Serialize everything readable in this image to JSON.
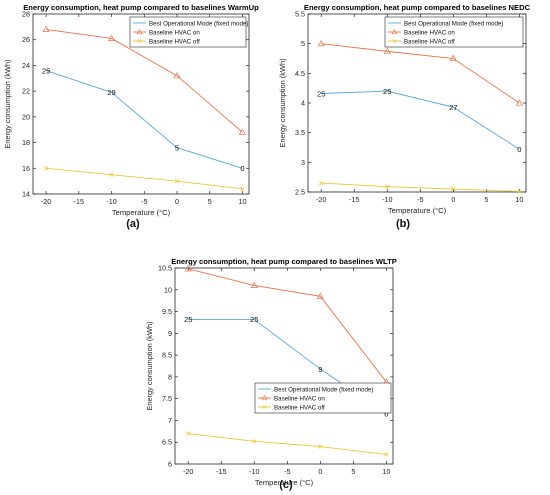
{
  "colors": {
    "best": "#5aa7d8",
    "hvac_on": "#e8744a",
    "hvac_off": "#edc535",
    "axis": "#262626",
    "title": "#000000"
  },
  "legend_labels": [
    "Best Operational Mode (fixed mode)",
    "Baseline HVAC on",
    "Baseline HVAC off"
  ],
  "chart_data": [
    {
      "type": "line",
      "title": "Energy consumption, heat pump compared to baselines WarmUp",
      "caption": "(a)",
      "xlabel": "Temperature (°C)",
      "ylabel": "Energy consumption (kWh)",
      "x": [
        -20,
        -10,
        0,
        10
      ],
      "xlim": [
        -22,
        11
      ],
      "ylim": [
        14,
        28
      ],
      "xticks": [
        -20,
        -15,
        -10,
        -5,
        0,
        5,
        10
      ],
      "yticks": [
        14,
        16,
        18,
        20,
        22,
        24,
        26,
        28
      ],
      "ytick_labels": [
        "14",
        "16",
        "18",
        "20",
        "22",
        "24",
        "26",
        "28"
      ],
      "legend_position": "top-right",
      "series": [
        {
          "name": "Best Operational Mode (fixed mode)",
          "values": [
            23.6,
            21.9,
            17.6,
            16.0
          ],
          "point_labels": [
            "25",
            "29",
            "5",
            "0"
          ]
        },
        {
          "name": "Baseline HVAC on",
          "values": [
            26.8,
            26.1,
            23.2,
            18.8
          ]
        },
        {
          "name": "Baseline HVAC off",
          "values": [
            16.0,
            15.5,
            15.0,
            14.4
          ]
        }
      ]
    },
    {
      "type": "line",
      "title": "Energy consumption, heat pump compared to baselines NEDC",
      "caption": "(b)",
      "xlabel": "Temperature (°C)",
      "ylabel": "Energy consumption (kWh)",
      "x": [
        -20,
        -10,
        0,
        10
      ],
      "xlim": [
        -22,
        11
      ],
      "ylim": [
        2.5,
        5.5
      ],
      "xticks": [
        -20,
        -15,
        -10,
        -5,
        0,
        5,
        10
      ],
      "yticks": [
        2.5,
        3,
        3.5,
        4,
        4.5,
        5,
        5.5
      ],
      "ytick_labels": [
        "2.5",
        "3",
        "3.5",
        "4",
        "4.5",
        "5",
        "5.5"
      ],
      "legend_position": "top-right",
      "series": [
        {
          "name": "Best Operational Mode (fixed mode)",
          "values": [
            4.16,
            4.2,
            3.93,
            3.22
          ],
          "point_labels": [
            "25",
            "25",
            "27",
            "0"
          ]
        },
        {
          "name": "Baseline HVAC on",
          "values": [
            5.0,
            4.87,
            4.75,
            4.0
          ]
        },
        {
          "name": "Baseline HVAC off",
          "values": [
            2.65,
            2.59,
            2.55,
            2.51
          ]
        }
      ]
    },
    {
      "type": "line",
      "title": "Energy consumption, heat pump compared to baselines WLTP",
      "caption": "(c)",
      "xlabel": "Temperature (°C)",
      "ylabel": "Energy consumption (kWh)",
      "x": [
        -20,
        -10,
        0,
        10
      ],
      "xlim": [
        -22,
        11
      ],
      "ylim": [
        6,
        10.5
      ],
      "xticks": [
        -20,
        -15,
        -10,
        -5,
        0,
        5,
        10
      ],
      "yticks": [
        6,
        6.5,
        7,
        7.5,
        8,
        8.5,
        9,
        9.5,
        10,
        10.5
      ],
      "ytick_labels": [
        "6",
        "6.5",
        "7",
        "7.5",
        "8",
        "8.5",
        "9",
        "9.5",
        "10",
        "10.5"
      ],
      "legend_position": "bottom-center",
      "series": [
        {
          "name": "Best Operational Mode (fixed mode)",
          "values": [
            9.32,
            9.32,
            8.18,
            7.15
          ],
          "point_labels": [
            "25",
            "25",
            "9",
            "0"
          ]
        },
        {
          "name": "Baseline HVAC on",
          "values": [
            10.48,
            10.1,
            9.85,
            7.88
          ]
        },
        {
          "name": "Baseline HVAC off",
          "values": [
            6.7,
            6.52,
            6.4,
            6.22
          ]
        }
      ]
    }
  ]
}
